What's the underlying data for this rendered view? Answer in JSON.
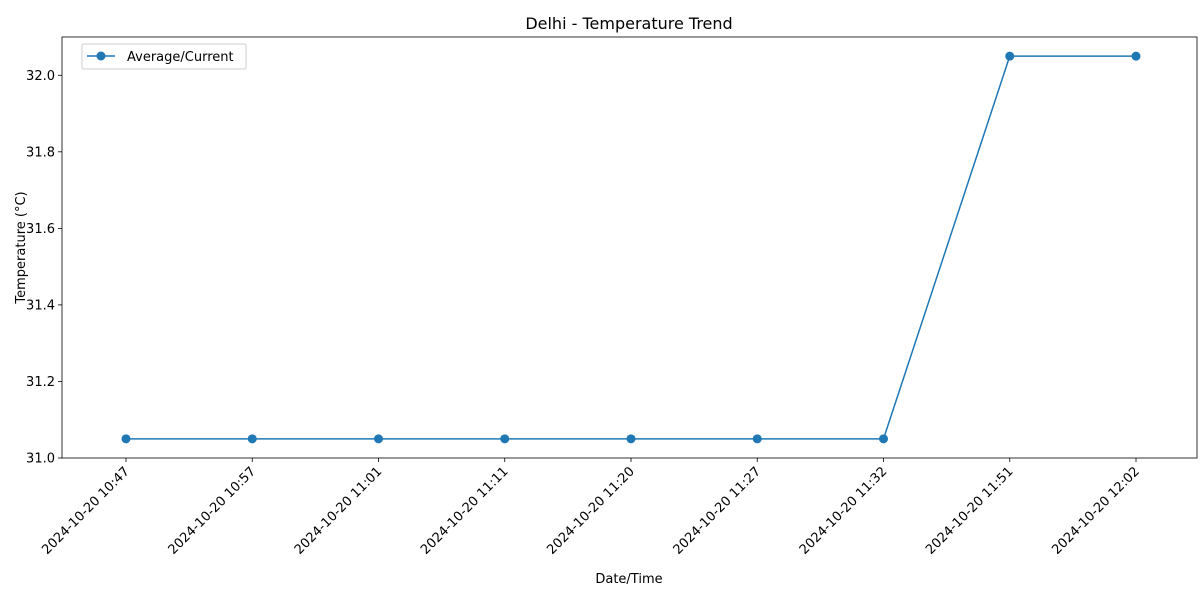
{
  "chart_data": {
    "type": "line",
    "title": "Delhi - Temperature Trend",
    "xlabel": "Date/Time",
    "ylabel": "Temperature (°C)",
    "categories": [
      "2024-10-20 10:47",
      "2024-10-20 10:57",
      "2024-10-20 11:01",
      "2024-10-20 11:11",
      "2024-10-20 11:20",
      "2024-10-20 11:27",
      "2024-10-20 11:32",
      "2024-10-20 11:51",
      "2024-10-20 12:02"
    ],
    "series": [
      {
        "name": "Average/Current",
        "color": "#1f77b4",
        "values": [
          31.05,
          31.05,
          31.05,
          31.05,
          31.05,
          31.05,
          31.05,
          32.05,
          32.05
        ]
      }
    ],
    "ylim": [
      31.0,
      32.1
    ],
    "yticks": [
      31.0,
      31.2,
      31.4,
      31.6,
      31.8,
      32.0
    ],
    "ytick_labels": [
      "31.0",
      "31.2",
      "31.4",
      "31.6",
      "31.8",
      "32.0"
    ],
    "grid": false,
    "legend_position": "top-left"
  }
}
